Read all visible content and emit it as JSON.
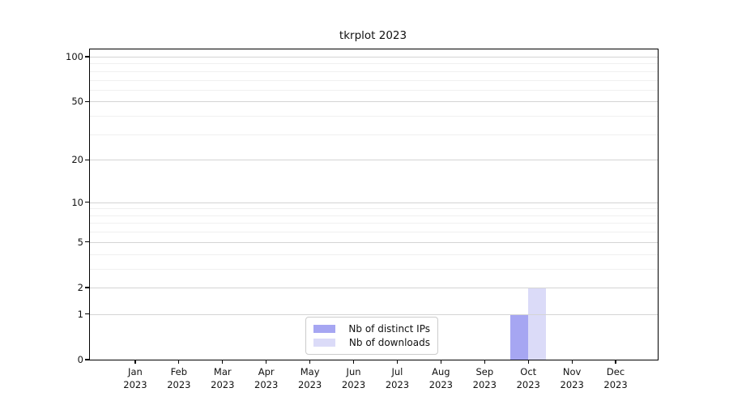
{
  "chart_data": {
    "type": "bar",
    "title": "tkrplot 2023",
    "categories": [
      "Jan",
      "Feb",
      "Mar",
      "Apr",
      "May",
      "Jun",
      "Jul",
      "Aug",
      "Sep",
      "Oct",
      "Nov",
      "Dec"
    ],
    "year_label": "2023",
    "series": [
      {
        "name": "Nb of distinct IPs",
        "color": "#a6a6f2",
        "values": [
          0,
          0,
          0,
          0,
          0,
          0,
          0,
          0,
          0,
          1,
          0,
          0
        ]
      },
      {
        "name": "Nb of downloads",
        "color": "#dbdbf8",
        "values": [
          0,
          0,
          0,
          0,
          0,
          0,
          0,
          0,
          0,
          2,
          0,
          0
        ]
      }
    ],
    "yscale": "log1p",
    "ylim": [
      0,
      100
    ],
    "yticks": [
      0,
      1,
      2,
      5,
      10,
      20,
      50,
      100
    ],
    "yticks_minor": [
      3,
      4,
      6,
      7,
      8,
      9,
      30,
      40,
      60,
      70,
      80,
      90
    ],
    "grid": "horizontal",
    "legend_position": "inside-bottom-center",
    "colors": {
      "grid_major": "#d4d4d4",
      "grid_minor": "#f0f0f0",
      "axis": "#000000",
      "background": "#ffffff"
    }
  }
}
